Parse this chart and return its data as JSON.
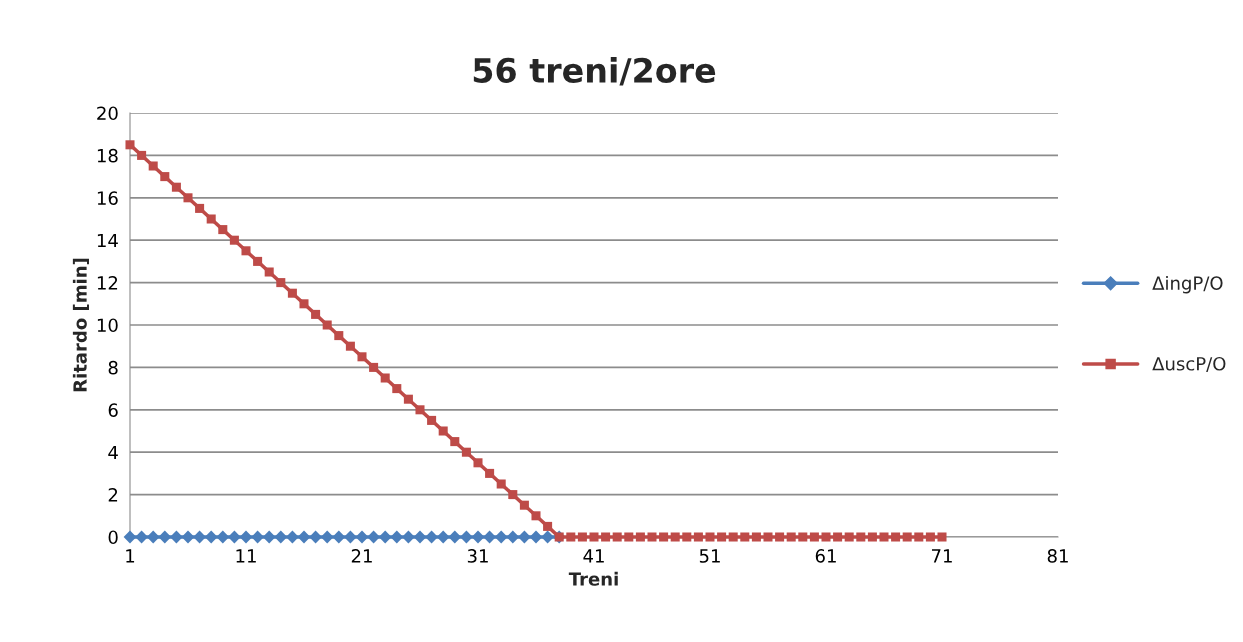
{
  "chart_data": {
    "type": "line",
    "title": "56 treni/2ore",
    "xlabel": "Treni",
    "ylabel": "Ritardo [min]",
    "x": [
      1,
      2,
      3,
      4,
      5,
      6,
      7,
      8,
      9,
      10,
      11,
      12,
      13,
      14,
      15,
      16,
      17,
      18,
      19,
      20,
      21,
      22,
      23,
      24,
      25,
      26,
      27,
      28,
      29,
      30,
      31,
      32,
      33,
      34,
      35,
      36,
      37,
      38,
      39,
      40,
      41,
      42,
      43,
      44,
      45,
      46,
      47,
      48,
      49,
      50,
      51,
      52,
      53,
      54,
      55,
      56,
      57,
      58,
      59,
      60,
      61,
      62,
      63,
      64,
      65,
      66,
      67,
      68,
      69,
      70,
      71
    ],
    "series": [
      {
        "name": "ΔingP/O",
        "color": "#4a7ebb",
        "marker": "diamond",
        "values": [
          0,
          0,
          0,
          0,
          0,
          0,
          0,
          0,
          0,
          0,
          0,
          0,
          0,
          0,
          0,
          0,
          0,
          0,
          0,
          0,
          0,
          0,
          0,
          0,
          0,
          0,
          0,
          0,
          0,
          0,
          0,
          0,
          0,
          0,
          0,
          0,
          0,
          0,
          null,
          null,
          null,
          null,
          null,
          null,
          null,
          null,
          null,
          null,
          null,
          null,
          null,
          null,
          null,
          null,
          null,
          null,
          null,
          null,
          null,
          null,
          null,
          null,
          null,
          null,
          null,
          null,
          null,
          null,
          null,
          null,
          null
        ]
      },
      {
        "name": "ΔuscP/O",
        "color": "#be4b48",
        "marker": "square",
        "values": [
          18.5,
          18,
          17.5,
          17,
          16.5,
          16,
          15.5,
          15,
          14.5,
          14,
          13.5,
          13,
          12.5,
          12,
          11.5,
          11,
          10.5,
          10,
          9.5,
          9,
          8.5,
          8,
          7.5,
          7,
          6.5,
          6,
          5.5,
          5,
          4.5,
          4,
          3.5,
          3,
          2.5,
          2,
          1.5,
          1,
          0.5,
          0,
          0,
          0,
          0,
          0,
          0,
          0,
          0,
          0,
          0,
          0,
          0,
          0,
          0,
          0,
          0,
          0,
          0,
          0,
          0,
          0,
          0,
          0,
          0,
          0,
          0,
          0,
          0,
          0,
          0,
          0,
          0,
          0,
          0
        ]
      }
    ],
    "xlim": [
      1,
      81
    ],
    "xticks": [
      1,
      11,
      21,
      31,
      41,
      51,
      61,
      71,
      81
    ],
    "ylim": [
      0,
      20
    ],
    "yticks": [
      0,
      2,
      4,
      6,
      8,
      10,
      12,
      14,
      16,
      18,
      20
    ],
    "grid": "y",
    "legend": "right",
    "line_style": "solid"
  }
}
